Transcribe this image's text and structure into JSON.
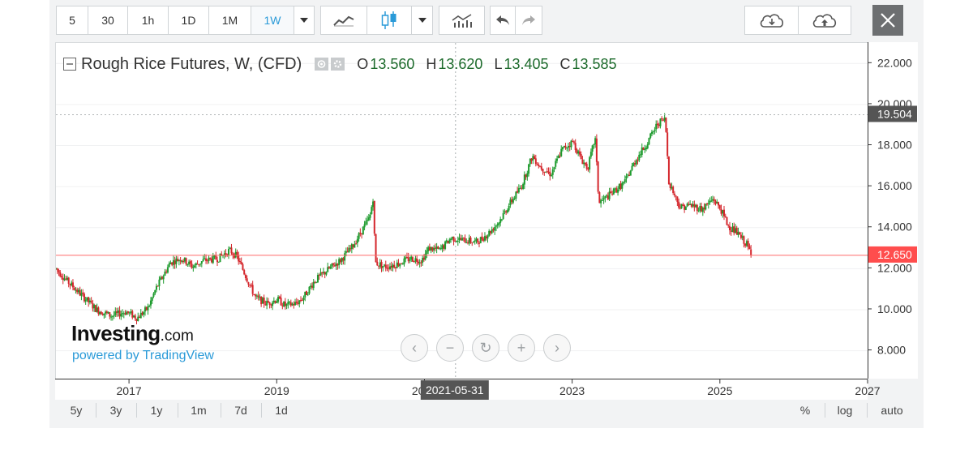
{
  "toolbar": {
    "intervals": [
      "5",
      "30",
      "1h",
      "1D",
      "1M",
      "1W"
    ],
    "active_interval": "1W",
    "icons": [
      "dropdown-caret-icon",
      "line-chart-icon",
      "candlestick-icon",
      "indicators-icon",
      "undo-icon",
      "redo-icon",
      "cloud-download-icon",
      "cloud-upload-icon",
      "close-icon"
    ]
  },
  "legend": {
    "title": "Rough Rice Futures, W, (CFD)",
    "open_label": "O",
    "open": "13.560",
    "high_label": "H",
    "high": "13.620",
    "low_label": "L",
    "low": "13.405",
    "close_label": "C",
    "close": "13.585"
  },
  "watermark": {
    "brand": "Investing",
    "suffix": ".com",
    "powered": "powered by TradingView"
  },
  "price_axis": {
    "ticks": [
      "22.000",
      "20.000",
      "18.000",
      "16.000",
      "14.000",
      "12.000",
      "10.000",
      "8.000"
    ],
    "high_marker": "19.504",
    "last_price": "12.650"
  },
  "time_axis": {
    "ticks": [
      "2017",
      "2019",
      "2021",
      "2023",
      "2025",
      "2027"
    ],
    "crosshair_date": "2021-05-31"
  },
  "range_bar": {
    "ranges": [
      "5y",
      "3y",
      "1y",
      "1m",
      "7d",
      "1d"
    ],
    "percent_label": "%",
    "log_label": "log",
    "auto_label": "auto"
  },
  "colors": {
    "up": "#1e9b2e",
    "down": "#d4262c",
    "accent": "#2a9ad8",
    "last_price_badge": "#ff4d4d",
    "high_badge": "#555555"
  },
  "chart_data": {
    "type": "candlestick",
    "symbol": "Rough Rice Futures, W, (CFD)",
    "ylim": [
      6.6,
      23.0
    ],
    "xlim": [
      2016.0,
      2027.0
    ],
    "y_ticks": [
      8,
      10,
      12,
      14,
      16,
      18,
      20,
      22
    ],
    "x_ticks": [
      2017,
      2019,
      2021,
      2023,
      2025,
      2027
    ],
    "last_price": 12.65,
    "high_marker": 19.504,
    "path": [
      [
        2016.0,
        12.0
      ],
      [
        2016.15,
        11.4
      ],
      [
        2016.35,
        10.7
      ],
      [
        2016.55,
        10.0
      ],
      [
        2016.75,
        9.7
      ],
      [
        2016.95,
        9.9
      ],
      [
        2017.1,
        9.6
      ],
      [
        2017.25,
        10.1
      ],
      [
        2017.35,
        11.0
      ],
      [
        2017.55,
        12.3
      ],
      [
        2017.7,
        12.5
      ],
      [
        2017.85,
        12.1
      ],
      [
        2018.0,
        12.4
      ],
      [
        2018.2,
        12.5
      ],
      [
        2018.35,
        12.9
      ],
      [
        2018.45,
        12.6
      ],
      [
        2018.55,
        11.8
      ],
      [
        2018.7,
        10.6
      ],
      [
        2018.85,
        10.3
      ],
      [
        2019.0,
        10.5
      ],
      [
        2019.1,
        10.2
      ],
      [
        2019.25,
        10.3
      ],
      [
        2019.35,
        10.6
      ],
      [
        2019.5,
        11.4
      ],
      [
        2019.7,
        12.0
      ],
      [
        2019.85,
        12.4
      ],
      [
        2020.0,
        13.0
      ],
      [
        2020.15,
        13.9
      ],
      [
        2020.25,
        14.5
      ],
      [
        2020.3,
        15.6
      ],
      [
        2020.32,
        12.3
      ],
      [
        2020.45,
        12.1
      ],
      [
        2020.6,
        12.2
      ],
      [
        2020.8,
        12.5
      ],
      [
        2020.95,
        12.4
      ],
      [
        2021.05,
        13.0
      ],
      [
        2021.2,
        12.9
      ],
      [
        2021.35,
        13.5
      ],
      [
        2021.5,
        13.4
      ],
      [
        2021.7,
        13.3
      ],
      [
        2021.85,
        13.7
      ],
      [
        2022.0,
        14.3
      ],
      [
        2022.15,
        15.2
      ],
      [
        2022.3,
        16.0
      ],
      [
        2022.45,
        17.5
      ],
      [
        2022.55,
        17.0
      ],
      [
        2022.7,
        16.6
      ],
      [
        2022.85,
        17.8
      ],
      [
        2023.0,
        18.2
      ],
      [
        2023.1,
        17.4
      ],
      [
        2023.2,
        16.9
      ],
      [
        2023.3,
        18.4
      ],
      [
        2023.35,
        15.2
      ],
      [
        2023.5,
        15.6
      ],
      [
        2023.7,
        16.2
      ],
      [
        2023.85,
        17.3
      ],
      [
        2024.0,
        18.1
      ],
      [
        2024.15,
        19.1
      ],
      [
        2024.25,
        19.3
      ],
      [
        2024.3,
        16.2
      ],
      [
        2024.45,
        15.0
      ],
      [
        2024.6,
        15.1
      ],
      [
        2024.75,
        14.9
      ],
      [
        2024.9,
        15.4
      ],
      [
        2025.0,
        14.9
      ],
      [
        2025.1,
        14.1
      ],
      [
        2025.2,
        13.8
      ],
      [
        2025.3,
        13.4
      ],
      [
        2025.35,
        13.2
      ],
      [
        2025.42,
        12.65
      ]
    ]
  }
}
